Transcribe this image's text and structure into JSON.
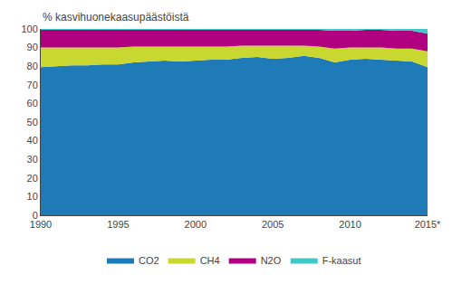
{
  "chart_data": {
    "type": "area",
    "stacked": true,
    "ylabel": "% kasvihuonekaasupäästöistä",
    "x": [
      1990,
      1991,
      1992,
      1993,
      1994,
      1995,
      1996,
      1997,
      1998,
      1999,
      2000,
      2001,
      2002,
      2003,
      2004,
      2005,
      2006,
      2007,
      2008,
      2009,
      2010,
      2011,
      2012,
      2013,
      2014,
      2015
    ],
    "series": [
      {
        "name": "CO2",
        "color": "#1f7bb8",
        "values": [
          79.5,
          80.0,
          80.5,
          80.5,
          81.0,
          81.0,
          82.0,
          82.5,
          83.0,
          82.5,
          83.0,
          83.5,
          83.5,
          84.5,
          85.0,
          84.0,
          84.5,
          85.5,
          84.5,
          82.0,
          83.5,
          84.0,
          83.5,
          83.0,
          82.5,
          79.5
        ]
      },
      {
        "name": "CH4",
        "color": "#c8d830",
        "values": [
          10.5,
          10.0,
          9.5,
          9.5,
          9.0,
          9.0,
          8.5,
          8.0,
          7.5,
          8.0,
          7.5,
          7.0,
          7.0,
          6.5,
          6.0,
          7.0,
          6.5,
          5.5,
          6.0,
          7.5,
          6.5,
          6.0,
          6.5,
          6.5,
          7.0,
          8.5
        ]
      },
      {
        "name": "N2O",
        "color": "#b0007f",
        "values": [
          9.5,
          9.5,
          9.5,
          9.5,
          9.5,
          9.5,
          9.0,
          9.0,
          9.0,
          9.0,
          9.0,
          9.0,
          9.0,
          8.5,
          8.5,
          8.5,
          8.5,
          8.5,
          9.0,
          9.5,
          9.0,
          9.5,
          9.5,
          9.5,
          9.5,
          9.5
        ]
      },
      {
        "name": "F-kaasut",
        "color": "#40c8c8",
        "values": [
          0.5,
          0.5,
          0.5,
          0.5,
          0.5,
          0.5,
          0.5,
          0.5,
          0.5,
          0.5,
          0.5,
          0.5,
          0.5,
          0.5,
          0.5,
          0.5,
          0.5,
          0.5,
          0.5,
          1.0,
          1.0,
          0.5,
          0.5,
          1.0,
          1.0,
          2.5
        ]
      }
    ],
    "xlim": [
      1990,
      2015
    ],
    "xticks": [
      1990,
      1995,
      2000,
      2005,
      2010,
      {
        "value": 2015,
        "label": "2015*"
      }
    ],
    "ylim": [
      0,
      100
    ],
    "yticks": [
      0,
      10,
      20,
      30,
      40,
      50,
      60,
      70,
      80,
      90,
      100
    ],
    "grid": false,
    "legend": "bottom"
  }
}
